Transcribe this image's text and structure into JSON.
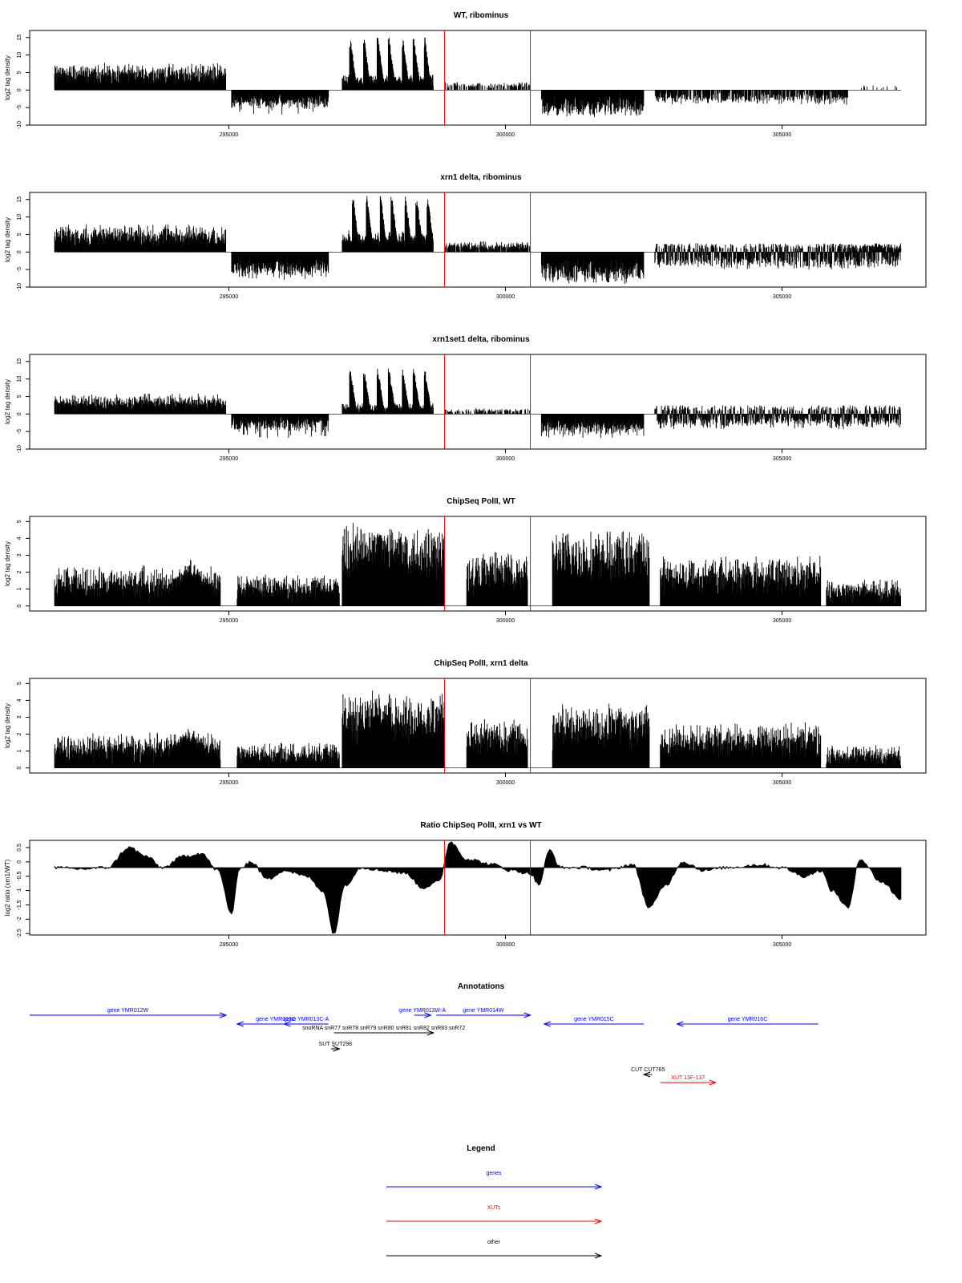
{
  "chart_data": [
    {
      "type": "bar",
      "title": "WT, ribominus",
      "ylabel": "log2 tag density",
      "xlim": [
        291800,
        307200
      ],
      "ylim": [
        -10,
        17
      ],
      "yticks": [
        -10,
        -5,
        0,
        5,
        10,
        15
      ],
      "xticks": [
        295000,
        300000,
        305000
      ],
      "xtick_labels": [
        "295000",
        "300000",
        "305000"
      ],
      "vlines": [
        298900,
        300450
      ],
      "segments": [
        {
          "x": [
            291850,
            294950
          ],
          "base": 0,
          "amp": 5,
          "noise": 2.5,
          "spike": 8
        },
        {
          "x": [
            295050,
            296800
          ],
          "base": 0,
          "amp": -3.5,
          "noise": 2,
          "spike": -7
        },
        {
          "x": [
            297050,
            298700
          ],
          "base": 0,
          "amp": 3,
          "noise": 1.5,
          "peaks": [
            297200,
            297450,
            297700,
            297900,
            298150,
            298350,
            298550
          ],
          "peakh": 15
        },
        {
          "x": [
            298900,
            300450
          ],
          "base": 0,
          "amp": 1.5,
          "noise": 1,
          "sparse": 0.5
        },
        {
          "x": [
            300650,
            302500
          ],
          "base": 0,
          "amp": -5,
          "noise": 3,
          "spike": -8
        },
        {
          "x": [
            302700,
            306200
          ],
          "base": 0,
          "amp": -2.5,
          "noise": 2,
          "sparse": 0.7
        },
        {
          "x": [
            306400,
            307100
          ],
          "base": 0,
          "amp": 1,
          "noise": 0.5,
          "sparse": 0.1
        }
      ],
      "color": "#000000",
      "vline_color": "#ff0000"
    },
    {
      "type": "bar",
      "title": "xrn1 delta, ribominus",
      "ylabel": "log2 tag density",
      "xlim": [
        291800,
        307200
      ],
      "ylim": [
        -10,
        17
      ],
      "yticks": [
        -10,
        -5,
        0,
        5,
        10,
        15
      ],
      "xticks": [
        295000,
        300000,
        305000
      ],
      "xtick_labels": [
        "295000",
        "300000",
        "305000"
      ],
      "vlines": [
        298900,
        300450
      ],
      "segments": [
        {
          "x": [
            291850,
            294950
          ],
          "base": 0,
          "amp": 5,
          "noise": 2.5,
          "spike": 8
        },
        {
          "x": [
            295050,
            296800
          ],
          "base": 0,
          "amp": -5,
          "noise": 2.5,
          "spike": -8
        },
        {
          "x": [
            297050,
            298700
          ],
          "base": 0,
          "amp": 4,
          "noise": 2,
          "peaks": [
            297250,
            297500,
            297750,
            297950,
            298200,
            298400,
            298600
          ],
          "peakh": 16
        },
        {
          "x": [
            298900,
            300450
          ],
          "base": 0,
          "amp": 2,
          "noise": 1,
          "sparse": 0.8
        },
        {
          "x": [
            300650,
            302500
          ],
          "base": 0,
          "amp": -6,
          "noise": 3,
          "spike": -9
        },
        {
          "x": [
            302700,
            307150
          ],
          "base": 0,
          "amp": -3,
          "noise": 2.5,
          "dual": 2.5
        },
        {
          "x": [
            306000,
            307150
          ],
          "base": 0,
          "amp": 1.5,
          "noise": 1,
          "sparse": 0.6
        }
      ],
      "color": "#000000",
      "vline_color": "#ff0000"
    },
    {
      "type": "bar",
      "title": "xrn1set1 delta, ribominus",
      "ylabel": "log2 tag density",
      "xlim": [
        291800,
        307200
      ],
      "ylim": [
        -10,
        17
      ],
      "yticks": [
        -10,
        -5,
        0,
        5,
        10,
        15
      ],
      "xticks": [
        295000,
        300000,
        305000
      ],
      "xtick_labels": [
        "295000",
        "300000",
        "305000"
      ],
      "vlines": [
        298900,
        300450
      ],
      "segments": [
        {
          "x": [
            291850,
            294950
          ],
          "base": 0,
          "amp": 3.5,
          "noise": 2,
          "spike": 6
        },
        {
          "x": [
            295050,
            296800
          ],
          "base": 0,
          "amp": -3,
          "noise": 2.5,
          "spike": -7
        },
        {
          "x": [
            297050,
            298700
          ],
          "base": 0,
          "amp": 2,
          "noise": 1.5,
          "peaks": [
            297200,
            297450,
            297700,
            297900,
            298150,
            298350,
            298550
          ],
          "peakh": 13
        },
        {
          "x": [
            298900,
            300450
          ],
          "base": 0,
          "amp": 1,
          "noise": 1,
          "sparse": 0.5
        },
        {
          "x": [
            300650,
            302500
          ],
          "base": 0,
          "amp": -4,
          "noise": 2.5,
          "spike": -7
        },
        {
          "x": [
            302700,
            307150
          ],
          "base": 0,
          "amp": -2.5,
          "noise": 2.5,
          "dual": 2.5
        }
      ],
      "color": "#000000",
      "vline_color": "#ff0000"
    },
    {
      "type": "bar",
      "title": "ChipSeq PolII, WT",
      "ylabel": "log2 tag density",
      "xlim": [
        291800,
        307200
      ],
      "ylim": [
        -0.3,
        5.3
      ],
      "yticks": [
        0,
        1,
        2,
        3,
        4,
        5
      ],
      "xticks": [
        295000,
        300000,
        305000
      ],
      "xtick_labels": [
        "295000",
        "300000",
        "305000"
      ],
      "vlines": [
        298900,
        300450
      ],
      "segments": [
        {
          "x": [
            291850,
            294850
          ],
          "base": 0,
          "amp": 1.5,
          "noise": 1,
          "hump": [
            294300,
            2.8
          ]
        },
        {
          "x": [
            295150,
            297000
          ],
          "base": 0,
          "amp": 1.2,
          "noise": 0.8
        },
        {
          "x": [
            297050,
            298900
          ],
          "base": 0,
          "amp": 3.5,
          "noise": 1,
          "hump": [
            297700,
            4.8
          ]
        },
        {
          "x": [
            299300,
            300400
          ],
          "base": 0,
          "amp": 2.2,
          "noise": 1
        },
        {
          "x": [
            300850,
            302600
          ],
          "base": 0,
          "amp": 3.2,
          "noise": 0.8
        },
        {
          "x": [
            302800,
            305700
          ],
          "base": 0,
          "amp": 2,
          "noise": 1
        },
        {
          "x": [
            305800,
            307150
          ],
          "base": 0,
          "amp": 1,
          "noise": 0.8
        }
      ],
      "color": "#000000",
      "vline_color": "#ff0000"
    },
    {
      "type": "bar",
      "title": "ChipSeq PolII, xrn1 delta",
      "ylabel": "log2 tag density",
      "xlim": [
        291800,
        307200
      ],
      "ylim": [
        -0.3,
        5.3
      ],
      "yticks": [
        0,
        1,
        2,
        3,
        4,
        5
      ],
      "xticks": [
        295000,
        300000,
        305000
      ],
      "xtick_labels": [
        "295000",
        "300000",
        "305000"
      ],
      "vlines": [
        298900,
        300450
      ],
      "segments": [
        {
          "x": [
            291850,
            294850
          ],
          "base": 0,
          "amp": 1.3,
          "noise": 0.9,
          "hump": [
            294300,
            2.5
          ]
        },
        {
          "x": [
            295150,
            297000
          ],
          "base": 0,
          "amp": 0.9,
          "noise": 0.7
        },
        {
          "x": [
            297050,
            298900
          ],
          "base": 0,
          "amp": 3.2,
          "noise": 1,
          "hump": [
            297700,
            4.5
          ]
        },
        {
          "x": [
            299300,
            300400
          ],
          "base": 0,
          "amp": 2,
          "noise": 0.8
        },
        {
          "x": [
            300850,
            302600
          ],
          "base": 0,
          "amp": 2.7,
          "noise": 0.7
        },
        {
          "x": [
            302800,
            305700
          ],
          "base": 0,
          "amp": 1.8,
          "noise": 0.9
        },
        {
          "x": [
            305800,
            307150
          ],
          "base": 0,
          "amp": 0.8,
          "noise": 0.7
        }
      ],
      "color": "#000000",
      "vline_color": "#ff0000"
    },
    {
      "type": "area",
      "title": "Ratio ChipSeq PolII, xrn1 vs WT",
      "ylabel": "log2 ratio (xrn1/WT)",
      "xlim": [
        291800,
        307200
      ],
      "ylim": [
        -2.55,
        0.75
      ],
      "yticks": [
        -2.5,
        -2,
        -1.5,
        -1,
        -0.5,
        0,
        0.5
      ],
      "ytick_labels": [
        "-2.5",
        "-2",
        "-1.5",
        "-1",
        "-0.5",
        "0",
        "0.5"
      ],
      "xticks": [
        295000,
        300000,
        305000
      ],
      "xtick_labels": [
        "295000",
        "300000",
        "305000"
      ],
      "vlines": [
        298900,
        300450
      ],
      "baseline": -0.2,
      "points": [
        [
          291850,
          -0.2
        ],
        [
          292300,
          -0.25
        ],
        [
          292800,
          -0.2
        ],
        [
          293200,
          0.5
        ],
        [
          293500,
          0.2
        ],
        [
          293800,
          -0.2
        ],
        [
          294200,
          0.2
        ],
        [
          294500,
          0.3
        ],
        [
          294800,
          -0.3
        ],
        [
          295050,
          -1.8
        ],
        [
          295200,
          -0.2
        ],
        [
          295400,
          0
        ],
        [
          295700,
          -0.6
        ],
        [
          296000,
          -0.3
        ],
        [
          296400,
          -0.5
        ],
        [
          296700,
          -1
        ],
        [
          296900,
          -2.5
        ],
        [
          297100,
          -0.8
        ],
        [
          297400,
          -0.2
        ],
        [
          297800,
          -0.3
        ],
        [
          298200,
          -0.4
        ],
        [
          298500,
          -0.9
        ],
        [
          298800,
          -0.7
        ],
        [
          299000,
          0.7
        ],
        [
          299300,
          0.1
        ],
        [
          299800,
          -0.1
        ],
        [
          300100,
          -0.3
        ],
        [
          300450,
          -0.4
        ],
        [
          300600,
          -0.8
        ],
        [
          300800,
          0.4
        ],
        [
          301000,
          -0.2
        ],
        [
          301400,
          -0.2
        ],
        [
          301800,
          -0.3
        ],
        [
          302300,
          -0.1
        ],
        [
          302600,
          -1.6
        ],
        [
          302900,
          -0.8
        ],
        [
          303200,
          0
        ],
        [
          303600,
          -0.3
        ],
        [
          304000,
          -0.2
        ],
        [
          304600,
          -0.1
        ],
        [
          305000,
          -0.2
        ],
        [
          305400,
          -0.5
        ],
        [
          305700,
          -0.3
        ],
        [
          305900,
          -1
        ],
        [
          306200,
          -1.6
        ],
        [
          306400,
          0.1
        ],
        [
          306800,
          -0.7
        ],
        [
          307150,
          -1.3
        ]
      ],
      "color": "#000000",
      "vline_color": "#ff0000"
    }
  ],
  "annotations": {
    "title": "Annotations",
    "xlim": [
      291800,
      307200
    ],
    "items": [
      {
        "label": "gene YMR012W",
        "color": "#0000ff",
        "x": [
          291400,
          294950
        ],
        "row": 0,
        "dir": "+"
      },
      {
        "label": "gene YMR013C",
        "color": "#0000ff",
        "x": [
          295150,
          296550
        ],
        "row": 1,
        "dir": "-"
      },
      {
        "label": "gene YMR013C-A",
        "color": "#0000ff",
        "x": [
          296000,
          296800
        ],
        "row": 1,
        "dir": "-"
      },
      {
        "label": "gene YMR013W-A",
        "color": "#0000ff",
        "x": [
          298350,
          298650
        ],
        "row": 0,
        "dir": "+"
      },
      {
        "label": "gene YMR014W",
        "color": "#0000ff",
        "x": [
          298750,
          300450
        ],
        "row": 0,
        "dir": "+"
      },
      {
        "label": "gene YMR015C",
        "color": "#0000ff",
        "x": [
          300700,
          302500
        ],
        "row": 1,
        "dir": "-"
      },
      {
        "label": "gene YMR016C",
        "color": "#0000ff",
        "x": [
          303100,
          305650
        ],
        "row": 1,
        "dir": "-"
      },
      {
        "label": "snoRNA snR77 snR78 snR79 snR80 snR81 snR82 snR83 snR72",
        "color": "#000000",
        "x": [
          296900,
          298700
        ],
        "row": 2,
        "dir": "+"
      },
      {
        "label": "SUT SUT298",
        "color": "#000000",
        "x": [
          296850,
          297000
        ],
        "row": 3,
        "dir": "+"
      },
      {
        "label": "CUT CUT765",
        "color": "#000000",
        "x": [
          302500,
          302650
        ],
        "row": 4,
        "dir": "-"
      },
      {
        "label": "XUT 13F-137",
        "color": "#ff0000",
        "x": [
          302800,
          303800
        ],
        "row": 5,
        "dir": "+"
      }
    ]
  },
  "legend": {
    "title": "Legend",
    "items": [
      {
        "label": "genes",
        "color": "#0000ff"
      },
      {
        "label": "XUTs",
        "color": "#ff0000"
      },
      {
        "label": "other",
        "color": "#000000"
      }
    ]
  }
}
